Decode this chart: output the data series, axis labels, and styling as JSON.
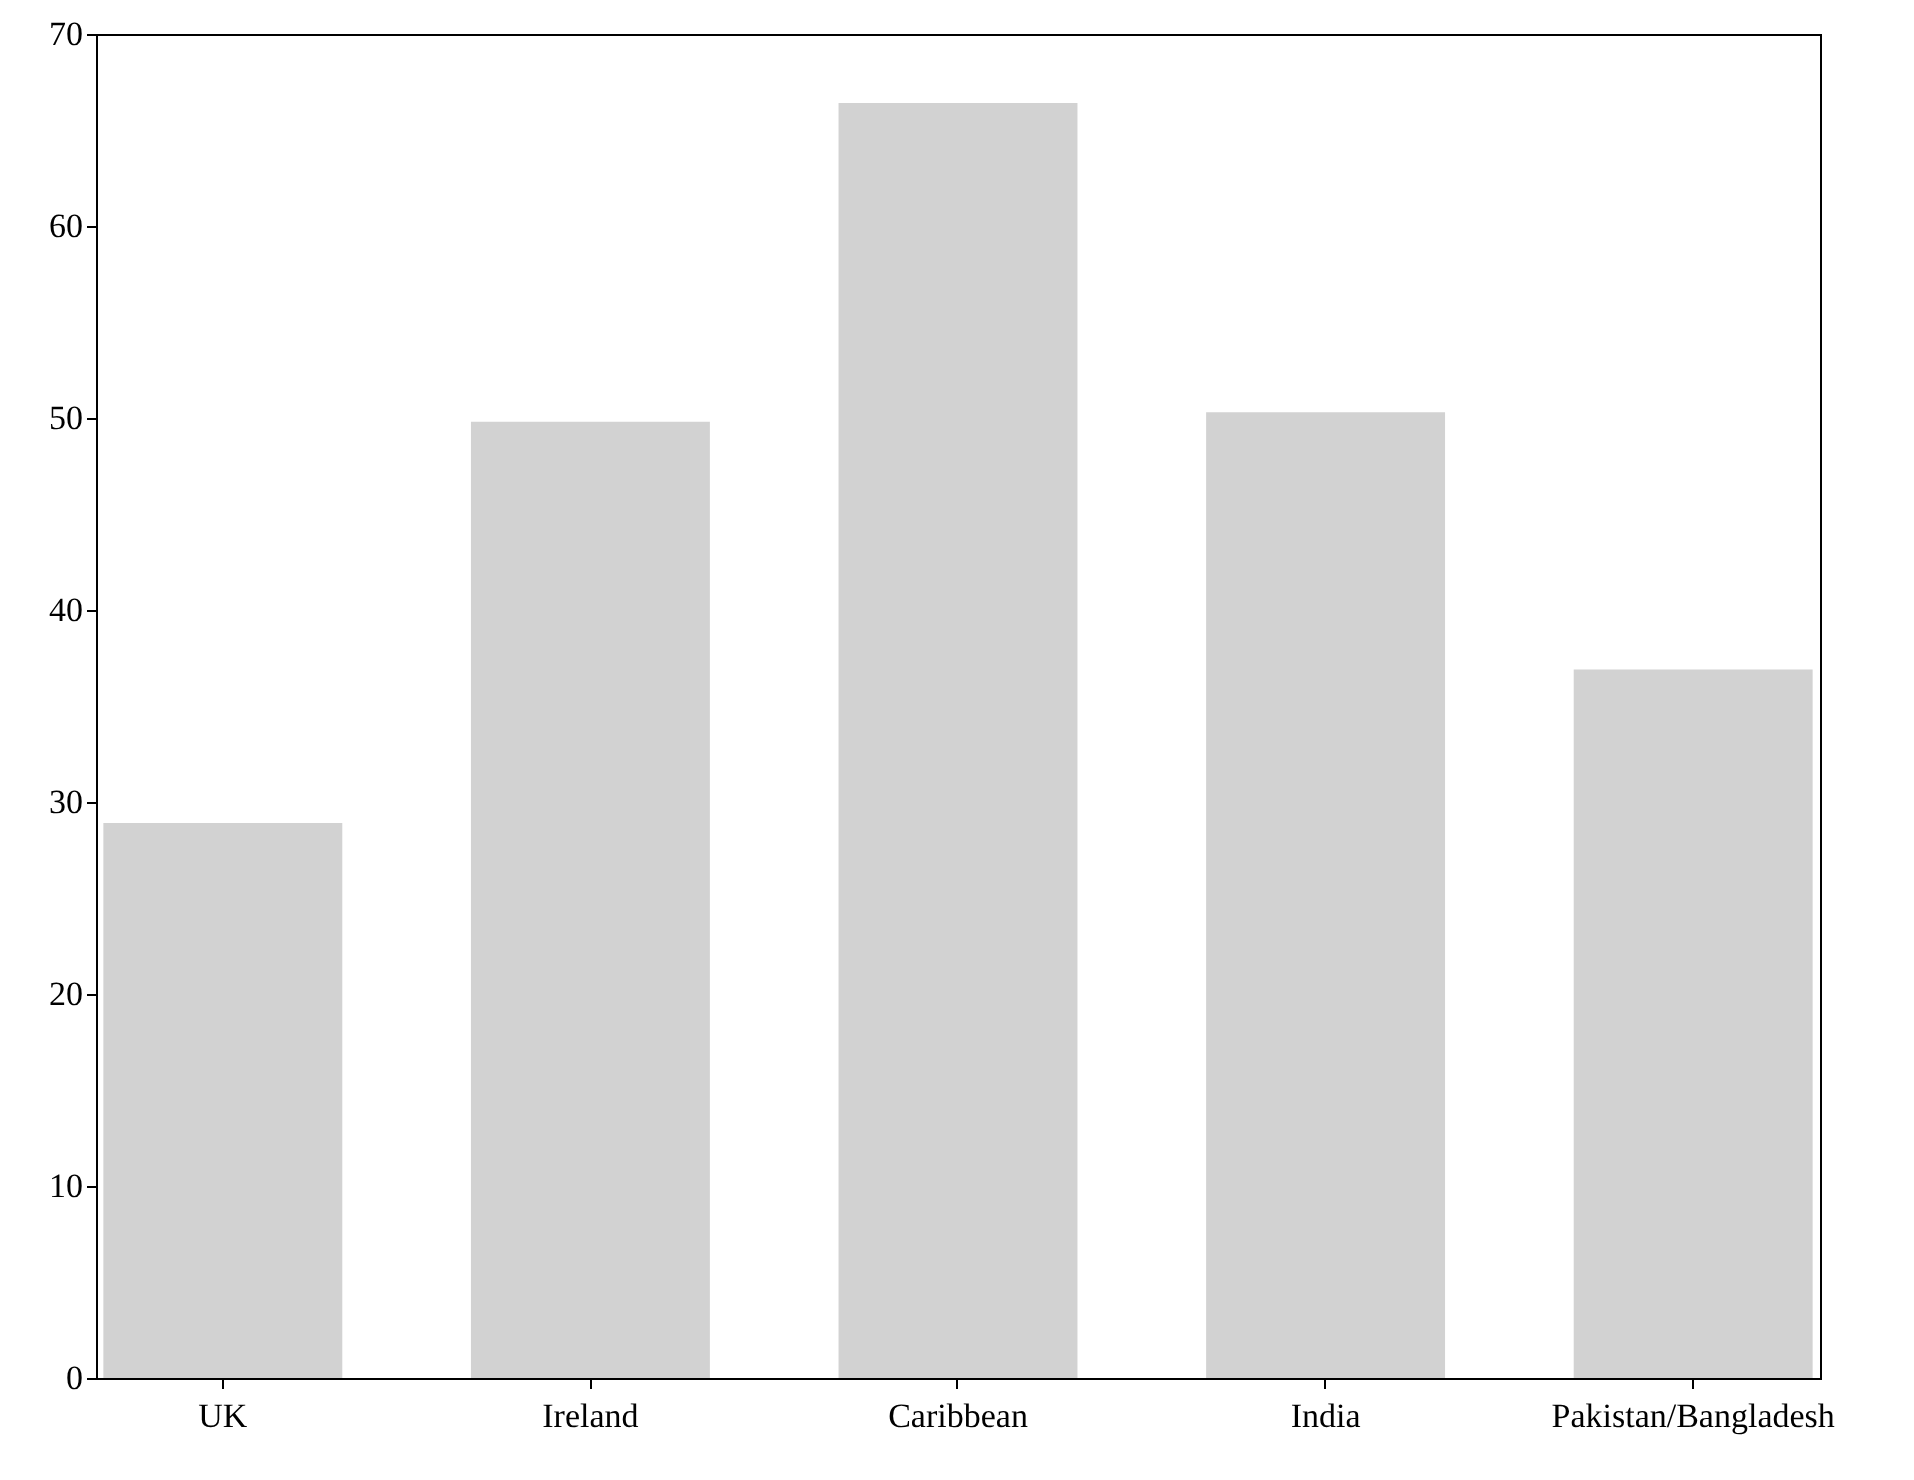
{
  "chart_data": {
    "type": "bar",
    "categories": [
      "UK",
      "Ireland",
      "Caribbean",
      "India",
      "Pakistan/Bangladesh"
    ],
    "values": [
      28.9,
      49.8,
      66.4,
      50.3,
      36.9
    ],
    "color": "#d2d2d2",
    "ylim": [
      0,
      70
    ],
    "yticks": [
      0,
      10,
      20,
      30,
      40,
      50,
      60,
      70
    ]
  }
}
